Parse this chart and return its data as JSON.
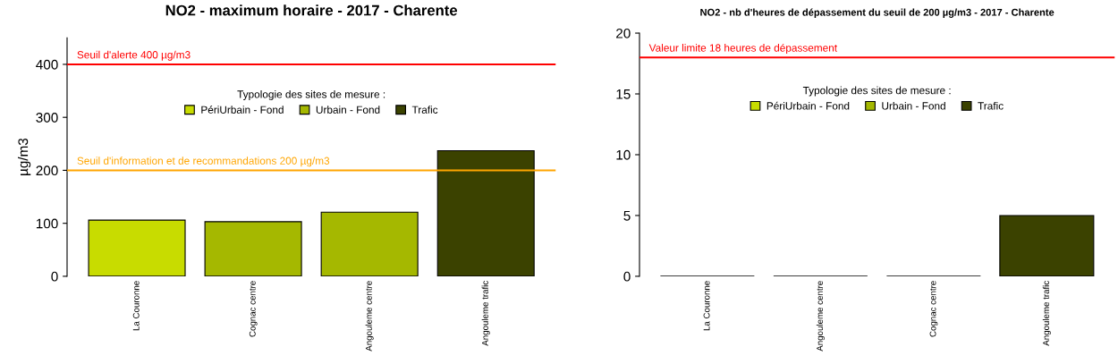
{
  "chart_data": [
    {
      "type": "bar",
      "title": "NO2 - maximum horaire - 2017 - Charente",
      "ylabel": "µg/m3",
      "categories": [
        "La Couronne",
        "Cognac centre",
        "Angouleme centre",
        "Angouleme trafic"
      ],
      "legend_title": "Typologie des sites de mesure :",
      "legend": "top",
      "series": [
        {
          "name": "PériUrbain - Fond",
          "color": "#c8dc00",
          "values": [
            106,
            null,
            null,
            null
          ]
        },
        {
          "name": "Urbain - Fond",
          "color": "#a5b800",
          "values": [
            null,
            103,
            121,
            null
          ]
        },
        {
          "name": "Trafic",
          "color": "#3b4200",
          "values": [
            null,
            null,
            null,
            237
          ]
        }
      ],
      "ylim": [
        0,
        450
      ],
      "yticks": [
        0,
        100,
        200,
        300,
        400
      ],
      "ref_lines": [
        {
          "axis": "y",
          "value": 400,
          "label": "Seuil d'alerte 400 µg/m3",
          "color": "#ff0000"
        },
        {
          "axis": "y",
          "value": 200,
          "label": "Seuil d'information et de recommandations 200 µg/m3",
          "color": "#ffa500"
        }
      ]
    },
    {
      "type": "bar",
      "title": "NO2 - nb d'heures de dépassement du seuil de 200 µg/m3 - 2017 - Charente",
      "categories": [
        "La Couronne",
        "Angouleme centre",
        "Cognac centre",
        "Angouleme trafic"
      ],
      "legend_title": "Typologie des sites de mesure :",
      "legend": "top",
      "series": [
        {
          "name": "PériUrbain - Fond",
          "color": "#c8dc00",
          "values": [
            0,
            null,
            null,
            null
          ]
        },
        {
          "name": "Urbain - Fond",
          "color": "#a5b800",
          "values": [
            null,
            0,
            0,
            null
          ]
        },
        {
          "name": "Trafic",
          "color": "#3b4200",
          "values": [
            null,
            null,
            null,
            5
          ]
        }
      ],
      "ylim": [
        0,
        20
      ],
      "yticks": [
        0,
        5,
        10,
        15,
        20
      ],
      "ref_lines": [
        {
          "axis": "y",
          "value": 18,
          "label": "Valeur limite 18 heures de dépassement",
          "color": "#ff0000"
        }
      ]
    }
  ]
}
